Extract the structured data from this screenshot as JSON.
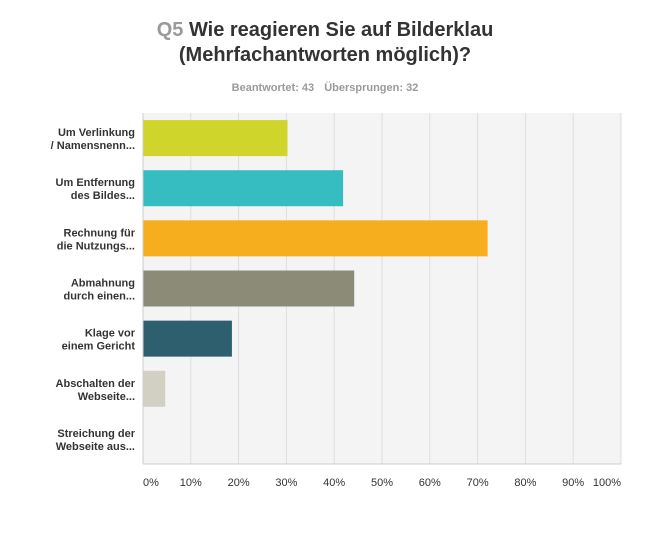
{
  "header": {
    "qnum": "Q5",
    "title_line1": "Wie reagieren Sie auf Bilderklau",
    "title_line2": "(Mehrfachantworten möglich)?",
    "answered": "Beantwortet: 43",
    "skipped": "Übersprungen: 32"
  },
  "chart_data": {
    "type": "bar",
    "orientation": "horizontal",
    "categories": [
      [
        "Um Verlinkung",
        "/ Namensnenn..."
      ],
      [
        "Um Entfernung",
        "des Bildes..."
      ],
      [
        "Rechnung für",
        "die Nutzungs..."
      ],
      [
        "Abmahnung",
        "durch einen..."
      ],
      [
        "Klage vor",
        "einem Gericht"
      ],
      [
        "Abschalten der",
        "Webseite..."
      ],
      [
        "Streichung der",
        "Webseite aus..."
      ]
    ],
    "values": [
      30.23,
      41.86,
      72.09,
      44.19,
      18.6,
      4.65,
      0
    ],
    "colors": [
      "#d0d52b",
      "#35bdc1",
      "#f6ae1e",
      "#8b8b78",
      "#2d5f6e",
      "#d2d0c2",
      "#cccccc"
    ],
    "xlim": [
      0,
      100
    ],
    "ticks": [
      "0%",
      "10%",
      "20%",
      "30%",
      "40%",
      "50%",
      "60%",
      "70%",
      "80%",
      "90%",
      "100%"
    ],
    "grid": true,
    "title": "Wie reagieren Sie auf Bilderklau (Mehrfachantworten möglich)?",
    "xlabel": "",
    "ylabel": ""
  }
}
